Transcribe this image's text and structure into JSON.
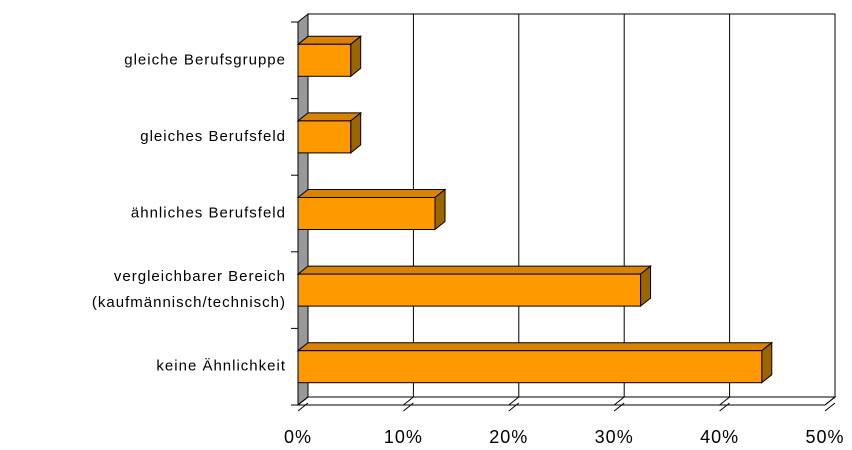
{
  "chart_data": {
    "type": "bar3d_horizontal",
    "categories": [
      "gleiche Berufsgruppe",
      "gleiches Berufsfeld",
      "ähnliches Berufsfeld",
      "vergleichbarer Bereich\n(kaufmännisch/technisch)",
      "keine Ähnlichkeit"
    ],
    "values": [
      5,
      5,
      13,
      32.5,
      44
    ],
    "color": "#ff9900",
    "xlim": [
      0,
      50
    ],
    "xticks": [
      {
        "value": 0,
        "label": "0%"
      },
      {
        "value": 10,
        "label": "10%"
      },
      {
        "value": 20,
        "label": "20%"
      },
      {
        "value": 30,
        "label": "30%"
      },
      {
        "value": 40,
        "label": "40%"
      },
      {
        "value": 50,
        "label": "50%"
      }
    ],
    "grid": true
  }
}
